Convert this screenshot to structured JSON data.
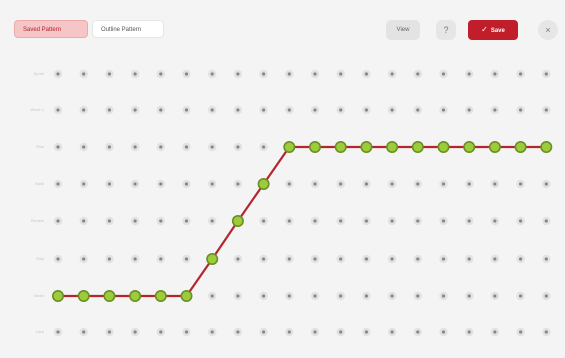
{
  "toolbar": {
    "tabs": [
      {
        "label": "Saved Pattern",
        "active": true
      },
      {
        "label": "Outline Pattern",
        "active": false
      }
    ],
    "view_label": "View",
    "help_label": "?",
    "save_label": "Save",
    "close_label": "×"
  },
  "grid": {
    "columns": 20,
    "row_labels": [
      "Sprint",
      "Week 1",
      "Plan",
      "Build",
      "Review",
      "Ship",
      "Wake",
      "Idea"
    ],
    "path_levels": [
      6,
      6,
      6,
      6,
      6,
      6,
      5,
      4,
      3,
      2,
      2,
      2,
      2,
      2,
      2,
      2,
      2,
      2,
      2,
      2
    ],
    "colors": {
      "line": "#b3262e",
      "node_fill": "#9ccc3c",
      "node_stroke": "#6a8f22",
      "dot": "#888888",
      "dot_halo": "#e2e2e2"
    }
  }
}
